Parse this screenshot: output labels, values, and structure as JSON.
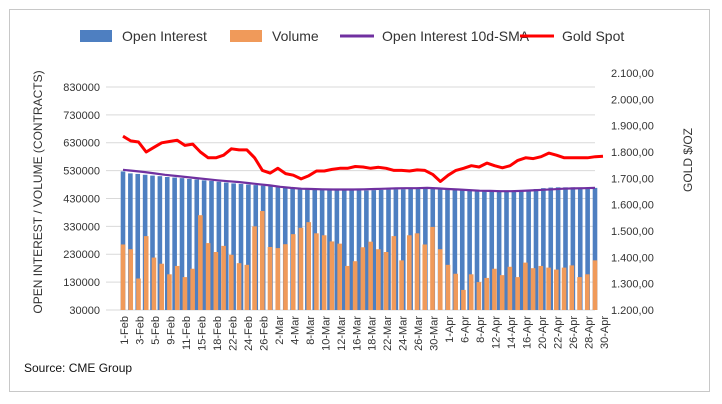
{
  "chart_data": {
    "type": "bar",
    "legend": [
      {
        "name": "Open Interest",
        "kind": "bar",
        "color": "#4e7fc1"
      },
      {
        "name": "Volume",
        "kind": "bar",
        "color": "#f09a5a"
      },
      {
        "name": "Open Interest 10d-SMA",
        "kind": "line",
        "color": "#7030a0"
      },
      {
        "name": "Gold Spot",
        "kind": "line",
        "color": "#ff0000"
      }
    ],
    "ylabel_left": "OPEN INTEREST / VOLUME (CONTRACTS)",
    "ylabel_right": "GOLD $/OZ",
    "y_left_ticks": [
      "30000",
      "130000",
      "230000",
      "330000",
      "430000",
      "530000",
      "630000",
      "730000",
      "830000"
    ],
    "y_left_lim": [
      30000,
      880000
    ],
    "y_right_ticks": [
      "1.200,00",
      "1.300,00",
      "1.400,00",
      "1.500,00",
      "1.600,00",
      "1.700,00",
      "1.800,00",
      "1.900,00",
      "2.000,00",
      "2.100,00"
    ],
    "y_right_lim": [
      1200,
      2100
    ],
    "x_tick_labels": [
      "1-Feb",
      "3-Feb",
      "5-Feb",
      "9-Feb",
      "11-Feb",
      "15-Feb",
      "18-Feb",
      "22-Feb",
      "24-Feb",
      "26-Feb",
      "2-Mar",
      "4-Mar",
      "8-Mar",
      "10-Mar",
      "12-Mar",
      "16-Mar",
      "18-Mar",
      "22-Mar",
      "24-Mar",
      "26-Mar",
      "30-Mar",
      "1-Apr",
      "6-Apr",
      "8-Apr",
      "12-Apr",
      "14-Apr",
      "16-Apr",
      "20-Apr",
      "22-Apr",
      "26-Apr",
      "28-Apr",
      "30-Apr"
    ],
    "series": [
      {
        "name": "Open Interest",
        "values": [
          527000,
          520000,
          518000,
          515000,
          512000,
          510000,
          507000,
          505000,
          503000,
          500000,
          498000,
          495000,
          493000,
          490000,
          487000,
          484000,
          482000,
          480000,
          478000,
          476000,
          474000,
          471000,
          469000,
          467000,
          465000,
          464000,
          463000,
          462000,
          461000,
          460000,
          460000,
          460000,
          459000,
          459000,
          460000,
          461000,
          462000,
          462000,
          463000,
          464000,
          465000,
          466000,
          467000,
          468000,
          467000,
          465000,
          463000,
          461000,
          459000,
          457000,
          456000,
          455000,
          455000,
          456000,
          458000,
          461000,
          464000,
          467000,
          469000,
          470000,
          470000,
          470000,
          469000,
          468000,
          468000
        ]
      },
      {
        "name": "Volume",
        "values": [
          265000,
          248000,
          143000,
          295000,
          218000,
          196000,
          158000,
          188000,
          148000,
          178000,
          370000,
          270000,
          238000,
          260000,
          228000,
          198000,
          192000,
          330000,
          385000,
          256000,
          252000,
          266000,
          302000,
          325000,
          345000,
          305000,
          298000,
          276000,
          268000,
          188000,
          205000,
          255000,
          275000,
          248000,
          238000,
          295000,
          208000,
          298000,
          305000,
          265000,
          328000,
          248000,
          192000,
          160000,
          102000,
          158000,
          130000,
          145000,
          178000,
          155000,
          185000,
          148000,
          200000,
          180000,
          188000,
          182000,
          175000,
          182000,
          190000,
          148000,
          158000,
          208000
        ]
      },
      {
        "name": "Open Interest 10d-SMA",
        "values": [
          533000,
          529000,
          525000,
          520000,
          515000,
          511000,
          507000,
          503000,
          499000,
          495000,
          492000,
          489000,
          485000,
          481000,
          477000,
          472000,
          468000,
          465000,
          464000,
          463000,
          462000,
          462000,
          462000,
          463000,
          464000,
          465000,
          466000,
          467000,
          467000,
          468000,
          466000,
          464000,
          462000,
          460000,
          458000,
          457000,
          456000,
          456000,
          457000,
          459000,
          461000,
          463000,
          465000,
          466000,
          467000,
          468000
        ]
      },
      {
        "name": "Gold Spot",
        "values": [
          1860,
          1842,
          1838,
          1800,
          1818,
          1835,
          1840,
          1845,
          1825,
          1830,
          1800,
          1778,
          1778,
          1788,
          1812,
          1808,
          1808,
          1778,
          1730,
          1720,
          1738,
          1718,
          1712,
          1698,
          1710,
          1728,
          1728,
          1734,
          1738,
          1738,
          1745,
          1743,
          1738,
          1742,
          1738,
          1730,
          1730,
          1728,
          1732,
          1730,
          1715,
          1688,
          1712,
          1730,
          1738,
          1748,
          1743,
          1758,
          1748,
          1740,
          1748,
          1768,
          1778,
          1775,
          1782,
          1796,
          1788,
          1778,
          1778,
          1778,
          1778,
          1782,
          1784
        ]
      }
    ]
  },
  "source": "Source: CME Group"
}
